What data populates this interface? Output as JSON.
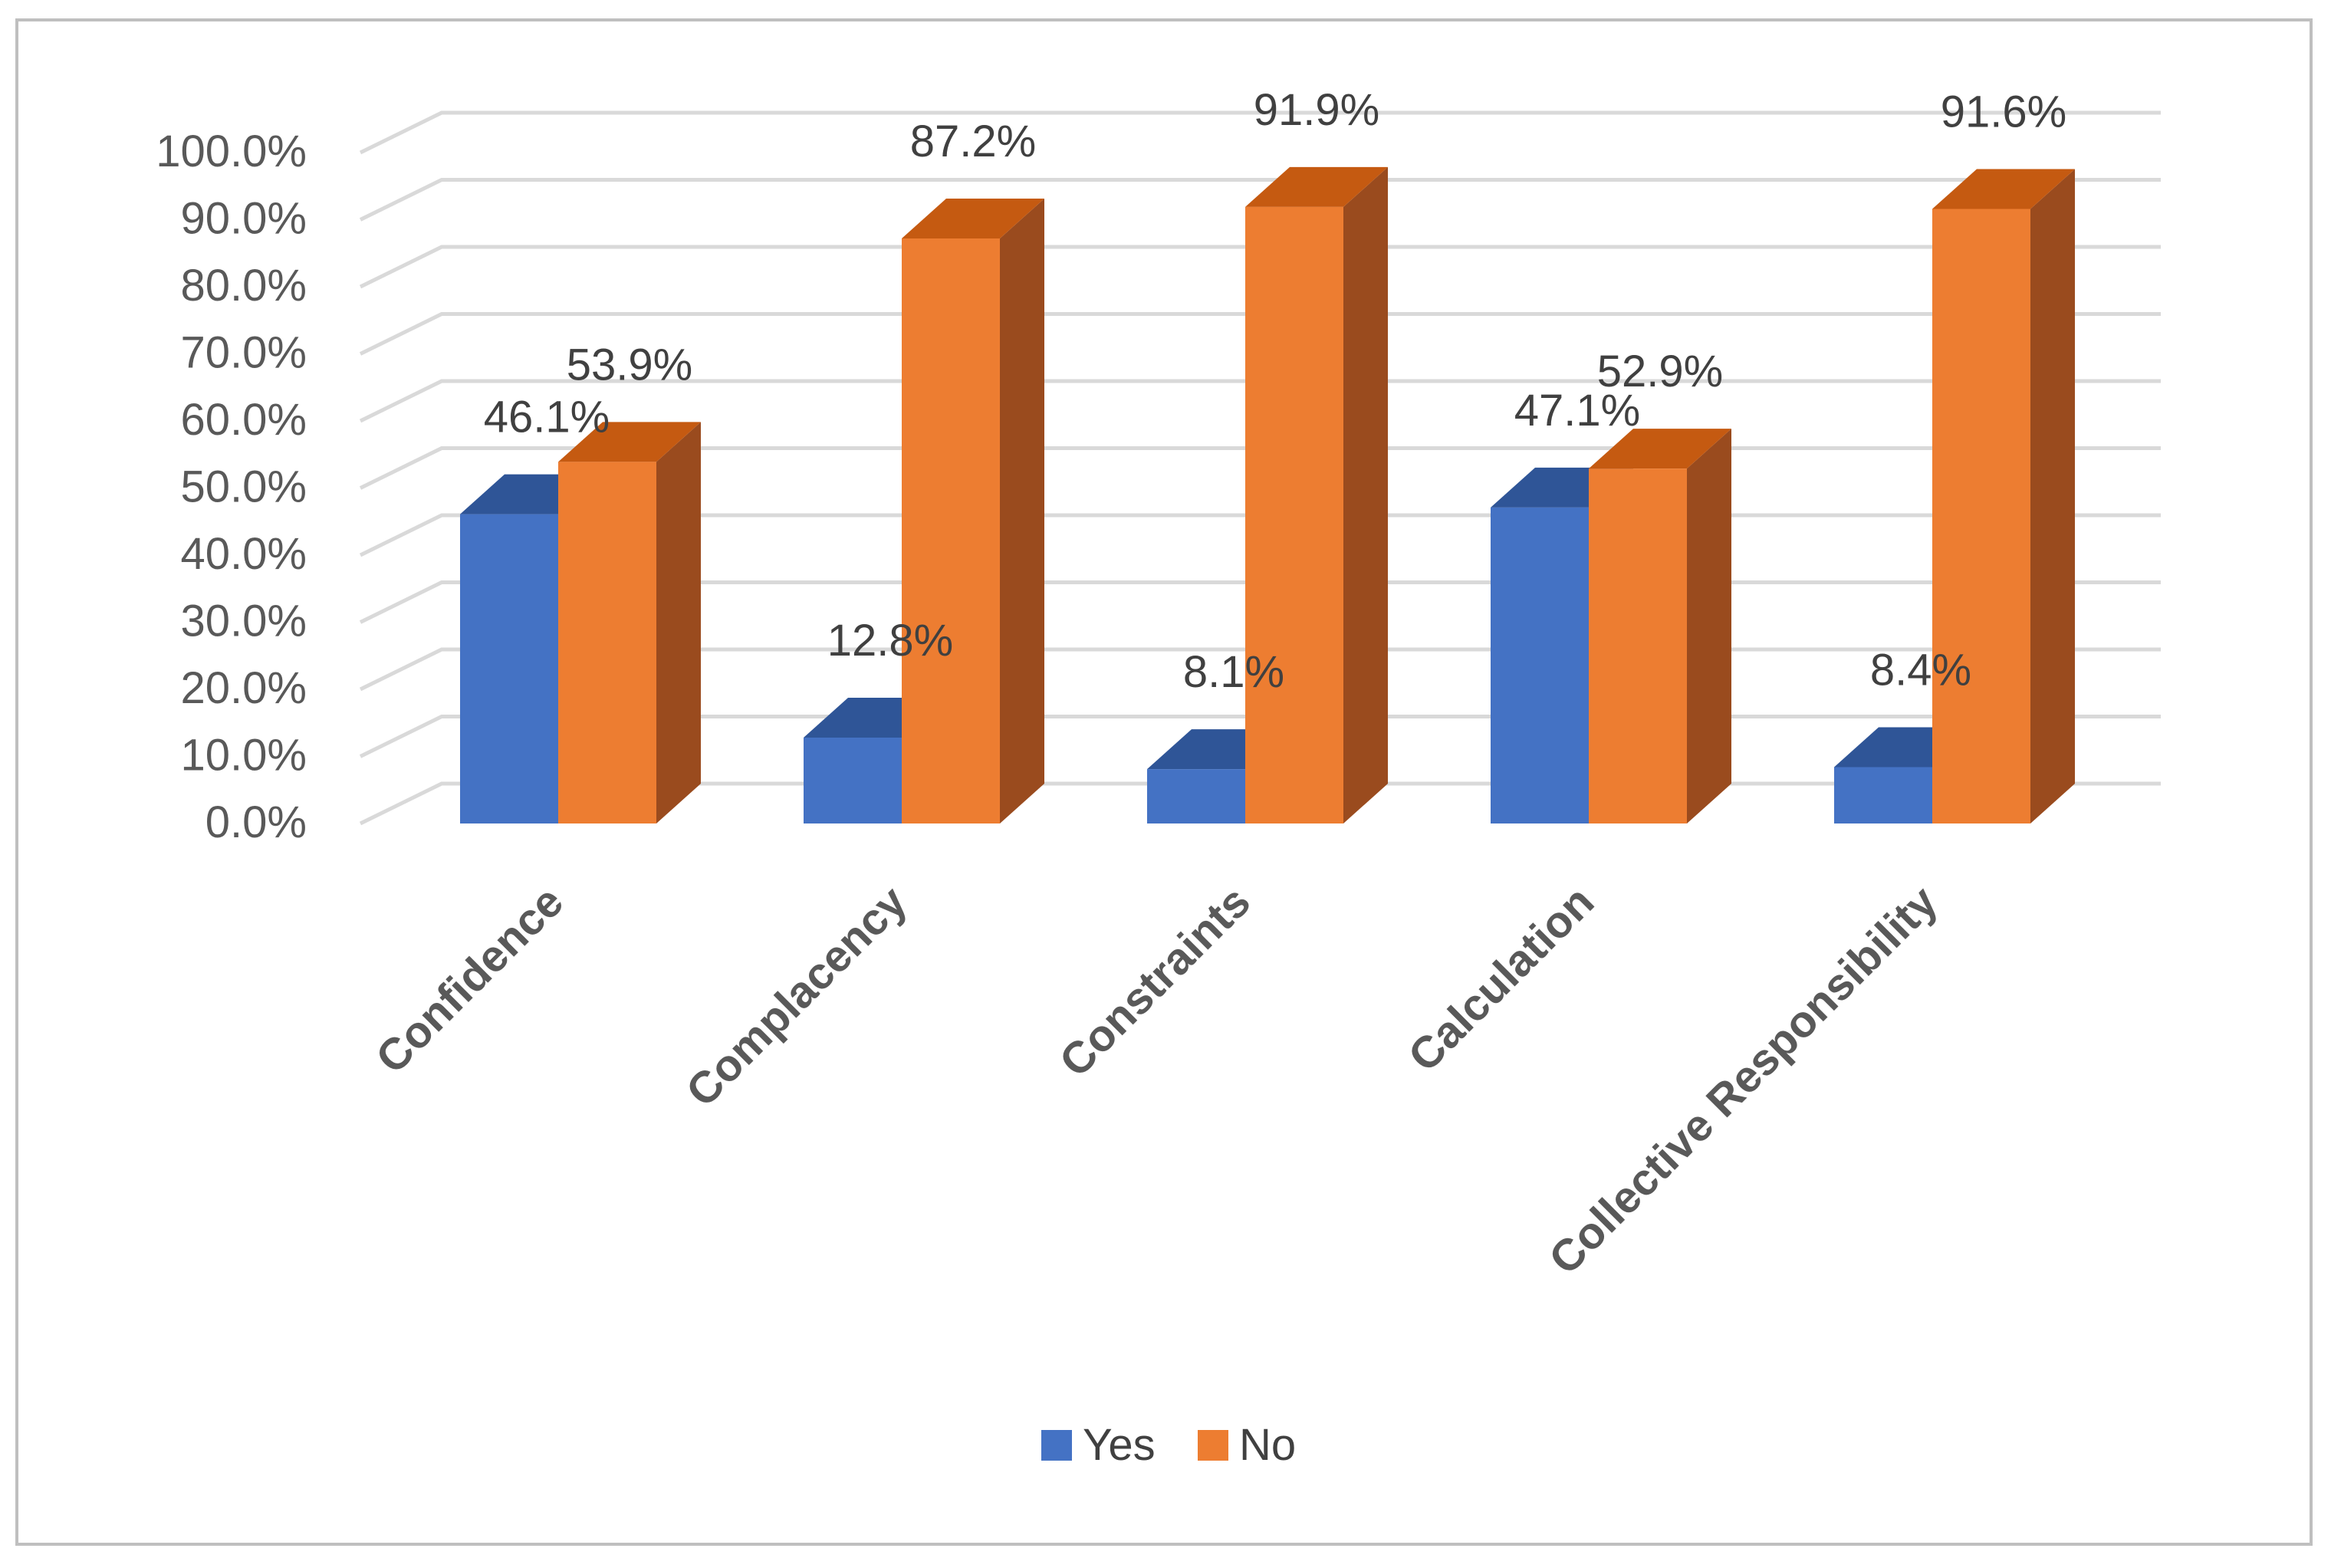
{
  "chart_data": {
    "type": "bar",
    "subtype": "clustered-3d-column",
    "categories": [
      "Confidence",
      "Complacency",
      "Constraints",
      "Calculation",
      "Collective Responsibility"
    ],
    "series": [
      {
        "name": "Yes",
        "values": [
          46.1,
          12.8,
          8.1,
          47.1,
          8.4
        ],
        "labels": [
          "46.1%",
          "12.8%",
          "8.1%",
          "47.1%",
          "8.4%"
        ],
        "color": "#4472C4"
      },
      {
        "name": "No",
        "values": [
          53.9,
          87.2,
          91.9,
          52.9,
          91.6
        ],
        "labels": [
          "53.9%",
          "87.2%",
          "91.9%",
          "52.9%",
          "91.6%"
        ],
        "color": "#ED7D31"
      }
    ],
    "ylim": [
      0,
      100
    ],
    "yticks": [
      "0.0%",
      "10.0%",
      "20.0%",
      "30.0%",
      "40.0%",
      "50.0%",
      "60.0%",
      "70.0%",
      "80.0%",
      "90.0%",
      "100.0%"
    ],
    "title": "",
    "xlabel": "",
    "ylabel": "",
    "grid": true,
    "legend_position": "bottom"
  },
  "colors": {
    "yes_front": "#4472C4",
    "yes_top": "#2F5597",
    "yes_side": "#2E4F8C",
    "no_front": "#ED7D31",
    "no_top": "#C55A11",
    "no_side": "#9A4B1E",
    "grid": "#D9D9D9",
    "border": "#BFBFBF"
  }
}
